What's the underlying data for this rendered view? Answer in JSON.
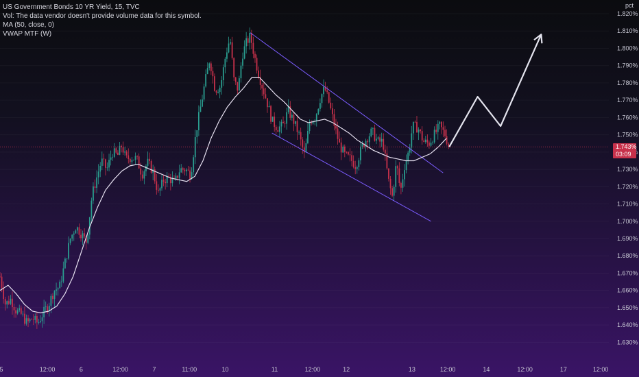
{
  "legend": {
    "title": "US Government Bonds 10 YR Yield, 15, TVC",
    "vol": "Vol: The data vendor doesn't provide volume data for this symbol.",
    "ma": "MA (50, close, 0)",
    "vwap": "VWAP MTF (W)"
  },
  "price_axis": {
    "unit": "pct",
    "current_value": "1.743%",
    "countdown": "03:09"
  },
  "colors": {
    "up": "#2a9d8f",
    "down": "#c7314b",
    "ma": "#e6e0f0",
    "channel": "#7b5cff",
    "projection": "#e4e4ee",
    "price_tag": "#c7314b"
  },
  "chart_data": {
    "type": "candlestick",
    "title": "US Government Bonds 10 YR Yield, 15, TVC",
    "ylabel": "pct",
    "ylim": [
      1.625,
      1.82
    ],
    "y_ticks": [
      "1.820%",
      "1.810%",
      "1.800%",
      "1.790%",
      "1.780%",
      "1.770%",
      "1.760%",
      "1.750%",
      "1.740%",
      "1.730%",
      "1.720%",
      "1.710%",
      "1.700%",
      "1.690%",
      "1.680%",
      "1.670%",
      "1.660%",
      "1.650%",
      "1.640%",
      "1.630%"
    ],
    "x_ticks": [
      {
        "label": "5",
        "t": 2
      },
      {
        "label": "12:00",
        "t": 70
      },
      {
        "label": "6",
        "t": 120
      },
      {
        "label": "12:00",
        "t": 178
      },
      {
        "label": "7",
        "t": 228
      },
      {
        "label": "11:00",
        "t": 280
      },
      {
        "label": "10",
        "t": 333
      },
      {
        "label": "11",
        "t": 406
      },
      {
        "label": "12:00",
        "t": 462
      },
      {
        "label": "12",
        "t": 512
      },
      {
        "label": "13",
        "t": 609
      },
      {
        "label": "12:00",
        "t": 662
      },
      {
        "label": "14",
        "t": 719
      },
      {
        "label": "12:00",
        "t": 776
      },
      {
        "label": "17",
        "t": 833
      },
      {
        "label": "12:00",
        "t": 888
      }
    ],
    "xlim": [
      0,
      900
    ],
    "current_price": 1.743,
    "price_path": [
      [
        0,
        1.668
      ],
      [
        8,
        1.652
      ],
      [
        16,
        1.655
      ],
      [
        24,
        1.648
      ],
      [
        32,
        1.646
      ],
      [
        40,
        1.641
      ],
      [
        48,
        1.644
      ],
      [
        56,
        1.641
      ],
      [
        64,
        1.647
      ],
      [
        72,
        1.652
      ],
      [
        80,
        1.66
      ],
      [
        88,
        1.662
      ],
      [
        96,
        1.676
      ],
      [
        104,
        1.69
      ],
      [
        112,
        1.697
      ],
      [
        120,
        1.693
      ],
      [
        128,
        1.688
      ],
      [
        136,
        1.715
      ],
      [
        142,
        1.724
      ],
      [
        150,
        1.735
      ],
      [
        158,
        1.73
      ],
      [
        166,
        1.74
      ],
      [
        174,
        1.738
      ],
      [
        180,
        1.744
      ],
      [
        186,
        1.736
      ],
      [
        194,
        1.737
      ],
      [
        202,
        1.736
      ],
      [
        210,
        1.727
      ],
      [
        218,
        1.734
      ],
      [
        226,
        1.729
      ],
      [
        234,
        1.716
      ],
      [
        242,
        1.724
      ],
      [
        250,
        1.725
      ],
      [
        258,
        1.722
      ],
      [
        266,
        1.73
      ],
      [
        274,
        1.73
      ],
      [
        282,
        1.727
      ],
      [
        290,
        1.752
      ],
      [
        296,
        1.765
      ],
      [
        302,
        1.778
      ],
      [
        310,
        1.794
      ],
      [
        318,
        1.776
      ],
      [
        326,
        1.778
      ],
      [
        334,
        1.797
      ],
      [
        340,
        1.806
      ],
      [
        346,
        1.781
      ],
      [
        352,
        1.776
      ],
      [
        358,
        1.796
      ],
      [
        364,
        1.803
      ],
      [
        370,
        1.807
      ],
      [
        378,
        1.792
      ],
      [
        386,
        1.78
      ],
      [
        394,
        1.77
      ],
      [
        402,
        1.758
      ],
      [
        410,
        1.754
      ],
      [
        418,
        1.755
      ],
      [
        426,
        1.764
      ],
      [
        434,
        1.758
      ],
      [
        442,
        1.75
      ],
      [
        450,
        1.738
      ],
      [
        458,
        1.758
      ],
      [
        466,
        1.76
      ],
      [
        474,
        1.772
      ],
      [
        480,
        1.777
      ],
      [
        486,
        1.769
      ],
      [
        494,
        1.756
      ],
      [
        502,
        1.744
      ],
      [
        510,
        1.738
      ],
      [
        518,
        1.736
      ],
      [
        526,
        1.732
      ],
      [
        534,
        1.742
      ],
      [
        542,
        1.748
      ],
      [
        550,
        1.752
      ],
      [
        558,
        1.746
      ],
      [
        566,
        1.746
      ],
      [
        574,
        1.724
      ],
      [
        580,
        1.714
      ],
      [
        586,
        1.734
      ],
      [
        592,
        1.717
      ],
      [
        598,
        1.732
      ],
      [
        604,
        1.74
      ],
      [
        610,
        1.755
      ],
      [
        618,
        1.754
      ],
      [
        626,
        1.746
      ],
      [
        634,
        1.745
      ],
      [
        642,
        1.75
      ],
      [
        650,
        1.755
      ],
      [
        658,
        1.75
      ],
      [
        664,
        1.743
      ]
    ],
    "ma_series": [
      [
        0,
        1.66
      ],
      [
        12,
        1.663
      ],
      [
        24,
        1.658
      ],
      [
        36,
        1.652
      ],
      [
        48,
        1.648
      ],
      [
        60,
        1.647
      ],
      [
        72,
        1.648
      ],
      [
        84,
        1.651
      ],
      [
        96,
        1.658
      ],
      [
        108,
        1.668
      ],
      [
        120,
        1.682
      ],
      [
        132,
        1.696
      ],
      [
        144,
        1.708
      ],
      [
        156,
        1.718
      ],
      [
        168,
        1.724
      ],
      [
        180,
        1.729
      ],
      [
        192,
        1.732
      ],
      [
        204,
        1.733
      ],
      [
        216,
        1.731
      ],
      [
        228,
        1.729
      ],
      [
        240,
        1.727
      ],
      [
        252,
        1.725
      ],
      [
        264,
        1.724
      ],
      [
        276,
        1.723
      ],
      [
        288,
        1.726
      ],
      [
        300,
        1.735
      ],
      [
        312,
        1.748
      ],
      [
        324,
        1.758
      ],
      [
        336,
        1.766
      ],
      [
        348,
        1.772
      ],
      [
        360,
        1.777
      ],
      [
        372,
        1.783
      ],
      [
        384,
        1.783
      ],
      [
        396,
        1.778
      ],
      [
        408,
        1.773
      ],
      [
        420,
        1.769
      ],
      [
        432,
        1.764
      ],
      [
        444,
        1.759
      ],
      [
        456,
        1.757
      ],
      [
        468,
        1.758
      ],
      [
        480,
        1.759
      ],
      [
        492,
        1.757
      ],
      [
        504,
        1.754
      ],
      [
        516,
        1.751
      ],
      [
        528,
        1.747
      ],
      [
        540,
        1.744
      ],
      [
        552,
        1.741
      ],
      [
        564,
        1.739
      ],
      [
        576,
        1.737
      ],
      [
        588,
        1.736
      ],
      [
        600,
        1.735
      ],
      [
        612,
        1.735
      ],
      [
        624,
        1.737
      ],
      [
        636,
        1.739
      ],
      [
        648,
        1.743
      ],
      [
        660,
        1.748
      ]
    ],
    "channel": {
      "upper": [
        [
          370,
          1.809
        ],
        [
          655,
          1.728
        ]
      ],
      "lower": [
        [
          402,
          1.751
        ],
        [
          637,
          1.7
        ]
      ]
    },
    "projection": [
      [
        664,
        1.743
      ],
      [
        706,
        1.772
      ],
      [
        740,
        1.755
      ],
      [
        800,
        1.808
      ]
    ]
  }
}
